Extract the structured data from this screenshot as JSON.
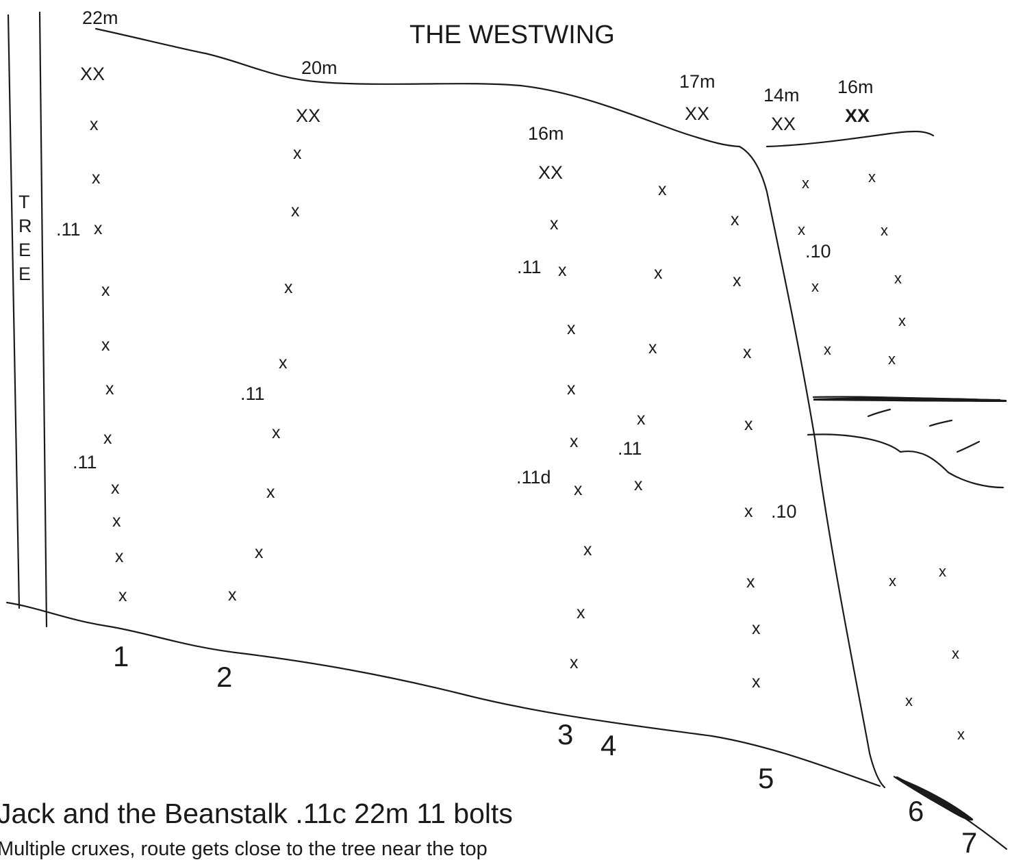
{
  "title": "THE WESTWING",
  "tree_label": [
    "T",
    "R",
    "E",
    "E"
  ],
  "route_numbers": [
    "1",
    "2",
    "3",
    "4",
    "5",
    "6",
    "7"
  ],
  "anchors": [
    "22m",
    "20m",
    "16m",
    "17m",
    "14m",
    "16m"
  ],
  "anchor_mark": "XX",
  "bolt_mark": "x",
  "grades": [
    ".11",
    ".11",
    ".11",
    ".11",
    ".11d",
    ".11",
    ".10",
    ".10"
  ],
  "route_caption": "Jack and the Beanstalk  .11c  22m 11 bolts",
  "route_description": "Multiple cruxes, route gets close to the tree near the top"
}
